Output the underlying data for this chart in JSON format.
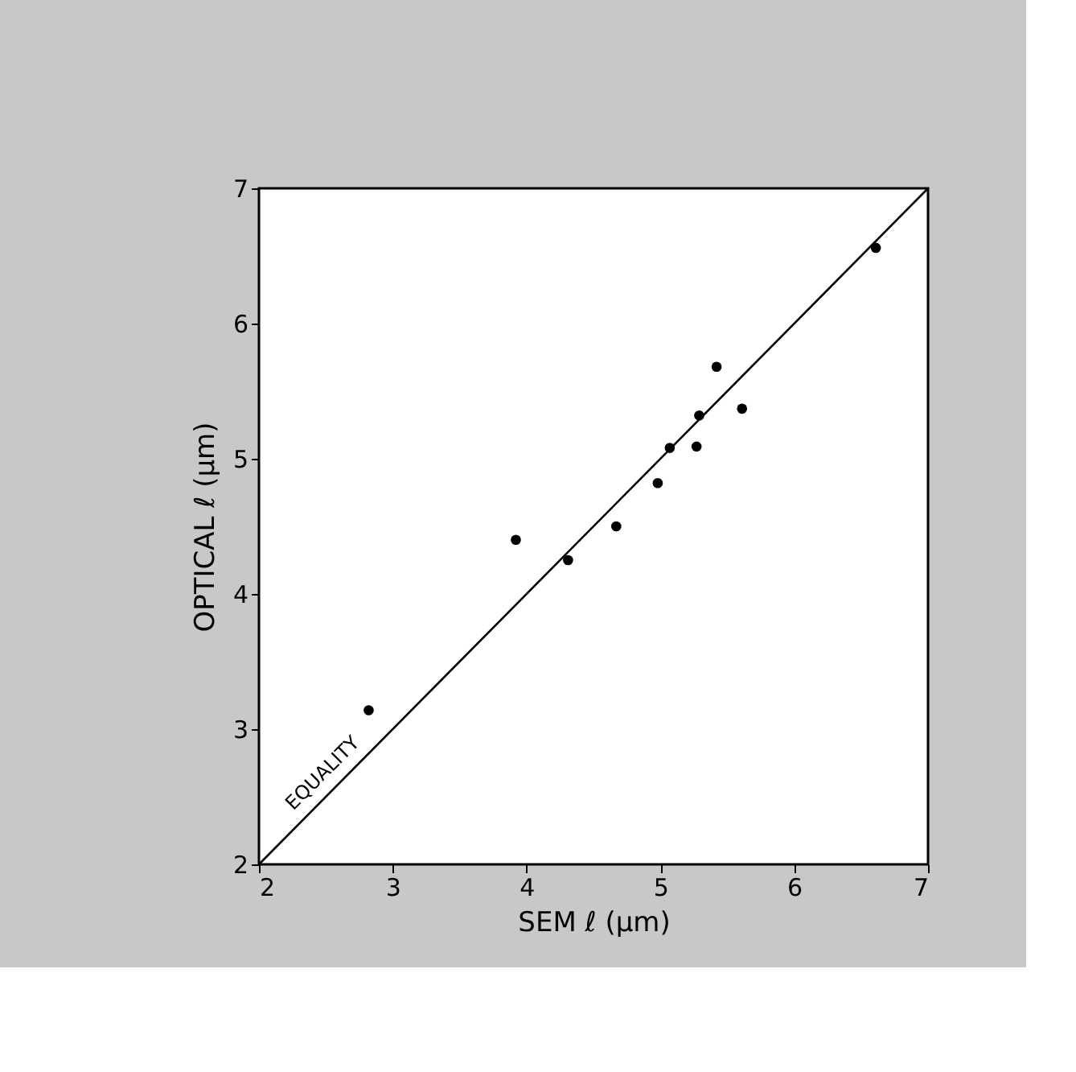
{
  "chart_data": {
    "type": "scatter",
    "xlabel": "SEM ℓ (μm)",
    "ylabel": "OPTICAL ℓ (μm)",
    "xlim": [
      2,
      7
    ],
    "ylim": [
      2,
      7
    ],
    "xticks": [
      2,
      3,
      4,
      5,
      6,
      7
    ],
    "yticks": [
      2,
      3,
      4,
      5,
      6,
      7
    ],
    "grid": false,
    "marker": "circle",
    "series": [
      {
        "color": "#000000",
        "x": [
          2.82,
          3.92,
          4.31,
          4.67,
          4.98,
          5.07,
          5.27,
          5.29,
          5.42,
          5.61,
          6.61
        ],
        "values": [
          3.14,
          4.4,
          4.25,
          4.5,
          4.82,
          5.08,
          5.09,
          5.32,
          5.68,
          5.37,
          6.56
        ]
      },
      {
        "type": "line",
        "color": "#000000",
        "line_style": "solid",
        "marker": "none",
        "x": [
          2,
          7
        ],
        "values": [
          2,
          7
        ]
      }
    ],
    "annotations": [
      {
        "text": "EQUALITY",
        "x": 2.55,
        "y": 2.6
      }
    ]
  }
}
